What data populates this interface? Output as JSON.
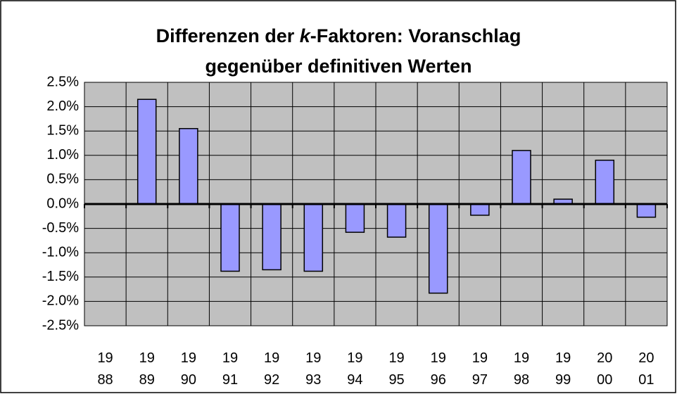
{
  "chart_data": {
    "type": "bar",
    "title": [
      "Differenzen der ",
      "k",
      "-Faktoren: Voranschlag",
      "gegenüber definitiven Werten"
    ],
    "categories": [
      "19\n88",
      "19\n89",
      "19\n90",
      "19\n91",
      "19\n92",
      "19\n93",
      "19\n94",
      "19\n95",
      "19\n96",
      "19\n97",
      "19\n98",
      "19\n99",
      "20\n00",
      "20\n01"
    ],
    "values": [
      0,
      2.15,
      1.55,
      -1.38,
      -1.35,
      -1.38,
      -0.58,
      -0.68,
      -1.83,
      -0.23,
      1.1,
      0.1,
      0.9,
      -0.27
    ],
    "color": "#9999ff",
    "ylim": [
      -2.5,
      2.5
    ],
    "yticks": [
      {
        "value": -2.5,
        "label": "-2.5%"
      },
      {
        "value": -2,
        "label": "-2.0%"
      },
      {
        "value": -1.5,
        "label": "-1.5%"
      },
      {
        "value": -1,
        "label": "-1.0%"
      },
      {
        "value": -0.5,
        "label": "-0.5%"
      },
      {
        "value": 0,
        "label": "0.0%"
      },
      {
        "value": 0.5,
        "label": "0.5%"
      },
      {
        "value": 1,
        "label": "1.0%"
      },
      {
        "value": 1.5,
        "label": "1.5%"
      },
      {
        "value": 2,
        "label": "2.0%"
      },
      {
        "value": 2.5,
        "label": "2.5%"
      }
    ],
    "grid": true
  }
}
